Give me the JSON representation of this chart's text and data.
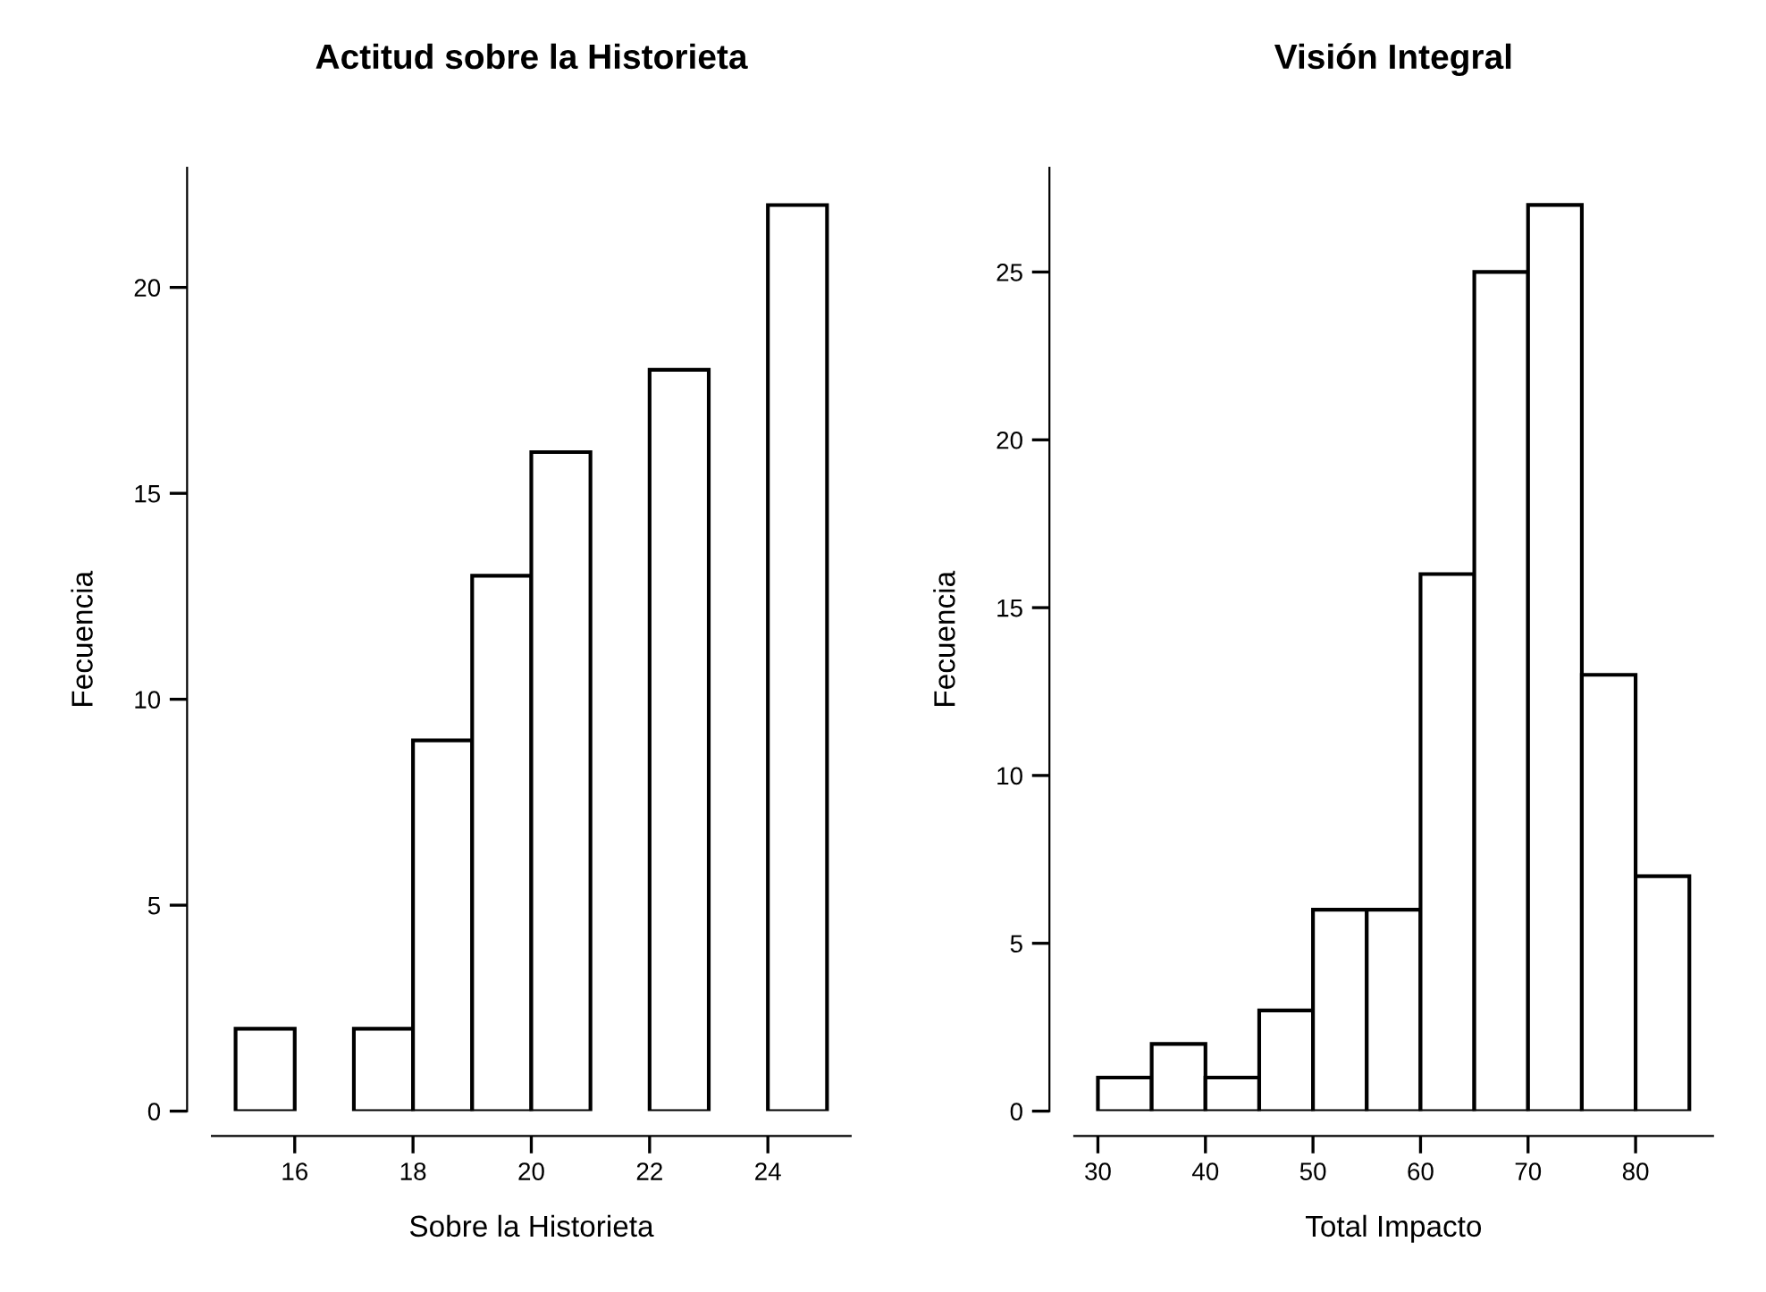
{
  "chart_data": [
    {
      "type": "histogram",
      "title": "Actitud sobre la Historieta",
      "xlabel": "Sobre la Historieta",
      "ylabel": "Fecuencia",
      "bins": [
        15,
        16,
        17,
        18,
        19,
        20,
        21,
        22,
        23,
        24,
        25
      ],
      "values": [
        2,
        0,
        2,
        9,
        13,
        16,
        0,
        18,
        0,
        22
      ],
      "color": "#ffffff",
      "xlim": [
        14.6,
        25.4
      ],
      "xticks": [
        16,
        18,
        20,
        22,
        24
      ],
      "ylim": [
        0,
        22.9
      ],
      "yticks": [
        0,
        5,
        10,
        15,
        20
      ],
      "grid": false
    },
    {
      "type": "histogram",
      "title": "Visión Integral",
      "xlabel": "Total Impacto",
      "ylabel": "Fecuencia",
      "bins": [
        30,
        35,
        40,
        45,
        50,
        55,
        60,
        65,
        70,
        75,
        80,
        85
      ],
      "values": [
        1,
        2,
        1,
        3,
        6,
        6,
        16,
        25,
        27,
        13,
        7
      ],
      "color": "#ffffff",
      "xlim": [
        27.8,
        87.2
      ],
      "xticks": [
        30,
        40,
        50,
        60,
        70,
        80
      ],
      "ylim": [
        0,
        28.1
      ],
      "yticks": [
        0,
        5,
        10,
        15,
        20,
        25
      ],
      "grid": false
    }
  ]
}
